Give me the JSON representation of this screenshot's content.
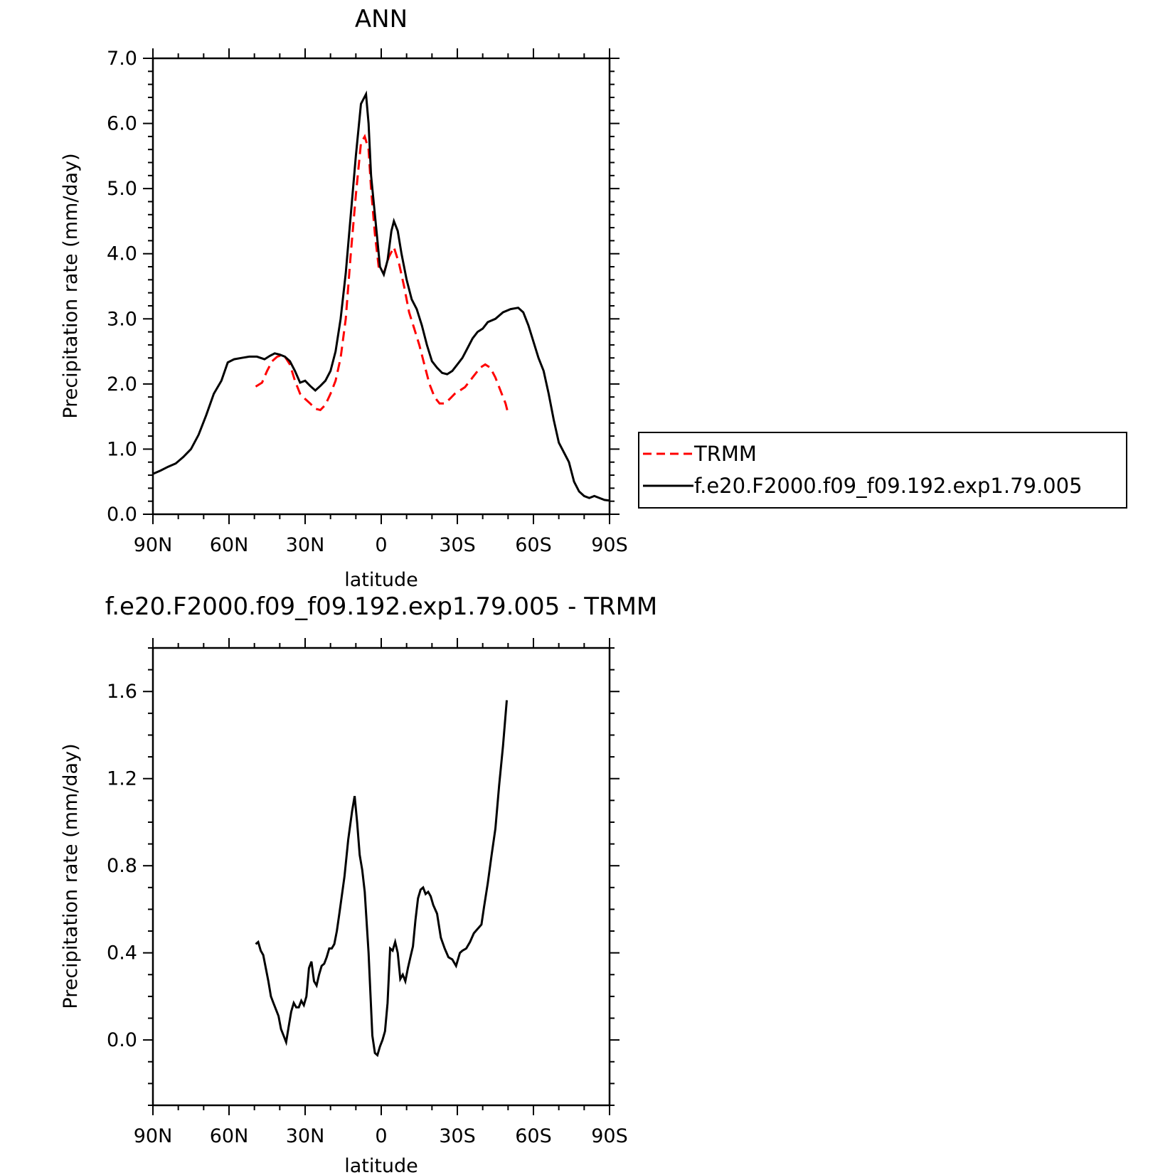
{
  "chart_data": [
    {
      "type": "line",
      "title": "ANN",
      "xlabel": "latitude",
      "ylabel": "Precipitation rate (mm/day)",
      "x_tick_values": [
        90,
        60,
        30,
        0,
        -30,
        -60,
        -90
      ],
      "x_tick_labels": [
        "90N",
        "60N",
        "30N",
        "0",
        "30S",
        "60S",
        "90S"
      ],
      "y_tick_values": [
        0,
        1,
        2,
        3,
        4,
        5,
        6,
        7
      ],
      "y_tick_labels": [
        "0.0",
        "1.0",
        "2.0",
        "3.0",
        "4.0",
        "5.0",
        "6.0",
        "7.0"
      ],
      "xlim": [
        90,
        -90
      ],
      "ylim": [
        0,
        7
      ],
      "legend_position": "right",
      "series": [
        {
          "name": "TRMM",
          "color": "#ff0000",
          "dash": "dashed",
          "points": [
            [
              49.5,
              1.96
            ],
            [
              47,
              2.02
            ],
            [
              45,
              2.2
            ],
            [
              43,
              2.35
            ],
            [
              41,
              2.42
            ],
            [
              38.5,
              2.45
            ],
            [
              36,
              2.3
            ],
            [
              34,
              2.05
            ],
            [
              32,
              1.85
            ],
            [
              30,
              1.77
            ],
            [
              28,
              1.7
            ],
            [
              26,
              1.62
            ],
            [
              24,
              1.6
            ],
            [
              22,
              1.68
            ],
            [
              20,
              1.85
            ],
            [
              18,
              2.05
            ],
            [
              16,
              2.4
            ],
            [
              14,
              3.0
            ],
            [
              12,
              4.0
            ],
            [
              10,
              4.9
            ],
            [
              8,
              5.7
            ],
            [
              6.5,
              5.8
            ],
            [
              5,
              5.6
            ],
            [
              4,
              5.0
            ],
            [
              2.5,
              4.3
            ],
            [
              1,
              3.8
            ],
            [
              -1,
              3.7
            ],
            [
              -3,
              3.95
            ],
            [
              -5,
              4.1
            ],
            [
              -7,
              3.85
            ],
            [
              -9,
              3.5
            ],
            [
              -11,
              3.1
            ],
            [
              -13,
              2.85
            ],
            [
              -15,
              2.6
            ],
            [
              -17,
              2.3
            ],
            [
              -19,
              2.0
            ],
            [
              -21,
              1.8
            ],
            [
              -23,
              1.7
            ],
            [
              -25,
              1.7
            ],
            [
              -27,
              1.77
            ],
            [
              -29,
              1.85
            ],
            [
              -31,
              1.9
            ],
            [
              -33,
              1.95
            ],
            [
              -36,
              2.1
            ],
            [
              -39,
              2.25
            ],
            [
              -41,
              2.3
            ],
            [
              -43,
              2.25
            ],
            [
              -45,
              2.1
            ],
            [
              -47,
              1.9
            ],
            [
              -49,
              1.7
            ],
            [
              -50,
              1.55
            ]
          ]
        },
        {
          "name": "f.e20.F2000.f09_f09.192.exp1.79.005",
          "color": "#000000",
          "dash": "solid",
          "points": [
            [
              90,
              0.62
            ],
            [
              87,
              0.67
            ],
            [
              84,
              0.73
            ],
            [
              81,
              0.78
            ],
            [
              78,
              0.88
            ],
            [
              75,
              1.0
            ],
            [
              72,
              1.22
            ],
            [
              69,
              1.52
            ],
            [
              66,
              1.85
            ],
            [
              63,
              2.05
            ],
            [
              60.5,
              2.33
            ],
            [
              58,
              2.38
            ],
            [
              55,
              2.4
            ],
            [
              52,
              2.42
            ],
            [
              49,
              2.42
            ],
            [
              46,
              2.38
            ],
            [
              44,
              2.43
            ],
            [
              42,
              2.47
            ],
            [
              40,
              2.45
            ],
            [
              38,
              2.42
            ],
            [
              36,
              2.35
            ],
            [
              34,
              2.2
            ],
            [
              32,
              2.02
            ],
            [
              30,
              2.05
            ],
            [
              28,
              1.97
            ],
            [
              26,
              1.9
            ],
            [
              24,
              1.97
            ],
            [
              22,
              2.05
            ],
            [
              20,
              2.2
            ],
            [
              18,
              2.5
            ],
            [
              16,
              3.0
            ],
            [
              14,
              3.7
            ],
            [
              12,
              4.6
            ],
            [
              10,
              5.5
            ],
            [
              8,
              6.3
            ],
            [
              6,
              6.45
            ],
            [
              5,
              6.0
            ],
            [
              4,
              5.2
            ],
            [
              2,
              4.4
            ],
            [
              0.5,
              3.8
            ],
            [
              -1,
              3.68
            ],
            [
              -2.5,
              3.9
            ],
            [
              -4,
              4.35
            ],
            [
              -5,
              4.5
            ],
            [
              -6.5,
              4.35
            ],
            [
              -8,
              4.0
            ],
            [
              -10,
              3.6
            ],
            [
              -12,
              3.3
            ],
            [
              -14,
              3.15
            ],
            [
              -16,
              2.9
            ],
            [
              -18,
              2.6
            ],
            [
              -20,
              2.35
            ],
            [
              -22,
              2.25
            ],
            [
              -24,
              2.17
            ],
            [
              -26,
              2.15
            ],
            [
              -28,
              2.2
            ],
            [
              -30,
              2.3
            ],
            [
              -32,
              2.4
            ],
            [
              -34,
              2.55
            ],
            [
              -36,
              2.7
            ],
            [
              -38,
              2.8
            ],
            [
              -40,
              2.85
            ],
            [
              -42,
              2.95
            ],
            [
              -45,
              3.0
            ],
            [
              -48,
              3.1
            ],
            [
              -51,
              3.15
            ],
            [
              -54,
              3.17
            ],
            [
              -56,
              3.1
            ],
            [
              -58,
              2.9
            ],
            [
              -60,
              2.65
            ],
            [
              -62,
              2.4
            ],
            [
              -64,
              2.2
            ],
            [
              -66,
              1.85
            ],
            [
              -68,
              1.45
            ],
            [
              -70,
              1.1
            ],
            [
              -72,
              0.95
            ],
            [
              -74,
              0.8
            ],
            [
              -76,
              0.5
            ],
            [
              -78,
              0.35
            ],
            [
              -80,
              0.28
            ],
            [
              -82,
              0.25
            ],
            [
              -84,
              0.28
            ],
            [
              -86,
              0.25
            ],
            [
              -88,
              0.22
            ],
            [
              -90,
              0.21
            ]
          ]
        }
      ]
    },
    {
      "type": "line",
      "title": "f.e20.F2000.f09_f09.192.exp1.79.005 - TRMM",
      "xlabel": "latitude",
      "ylabel": "Precipitation rate (mm/day)",
      "x_tick_values": [
        90,
        60,
        30,
        0,
        -30,
        -60,
        -90
      ],
      "x_tick_labels": [
        "90N",
        "60N",
        "30N",
        "0",
        "30S",
        "60S",
        "90S"
      ],
      "y_tick_values": [
        0,
        0.4,
        0.8,
        1.2,
        1.6
      ],
      "y_tick_labels": [
        "0.0",
        "0.4",
        "0.8",
        "1.2",
        "1.6"
      ],
      "xlim": [
        90,
        -90
      ],
      "ylim": [
        -0.3,
        1.8
      ],
      "series": [
        {
          "color": "#000000",
          "dash": "solid",
          "points": [
            [
              49.5,
              0.44
            ],
            [
              48.5,
              0.45
            ],
            [
              47.5,
              0.41
            ],
            [
              46.5,
              0.39
            ],
            [
              45.5,
              0.33
            ],
            [
              44.5,
              0.27
            ],
            [
              43.5,
              0.2
            ],
            [
              42.5,
              0.17
            ],
            [
              41.5,
              0.14
            ],
            [
              40.5,
              0.11
            ],
            [
              39.5,
              0.05
            ],
            [
              38.5,
              0.02
            ],
            [
              37.5,
              -0.01
            ],
            [
              36.5,
              0.06
            ],
            [
              35.5,
              0.13
            ],
            [
              34.5,
              0.17
            ],
            [
              33.5,
              0.15
            ],
            [
              32.5,
              0.15
            ],
            [
              31.5,
              0.18
            ],
            [
              30.5,
              0.16
            ],
            [
              29.5,
              0.2
            ],
            [
              28.5,
              0.33
            ],
            [
              27.5,
              0.36
            ],
            [
              26.5,
              0.27
            ],
            [
              25.5,
              0.25
            ],
            [
              24.5,
              0.3
            ],
            [
              23.5,
              0.34
            ],
            [
              22.5,
              0.35
            ],
            [
              21.5,
              0.38
            ],
            [
              20.5,
              0.42
            ],
            [
              19.5,
              0.42
            ],
            [
              18.5,
              0.44
            ],
            [
              17.5,
              0.5
            ],
            [
              16.5,
              0.58
            ],
            [
              14.5,
              0.75
            ],
            [
              13,
              0.92
            ],
            [
              11.5,
              1.05
            ],
            [
              10.5,
              1.12
            ],
            [
              9.5,
              1.0
            ],
            [
              8.5,
              0.85
            ],
            [
              7.5,
              0.78
            ],
            [
              6.5,
              0.68
            ],
            [
              5,
              0.4
            ],
            [
              3.5,
              0.02
            ],
            [
              2.5,
              -0.06
            ],
            [
              1.5,
              -0.07
            ],
            [
              0.5,
              -0.03
            ],
            [
              -0.5,
              0.0
            ],
            [
              -1.5,
              0.04
            ],
            [
              -2.5,
              0.17
            ],
            [
              -3.5,
              0.42
            ],
            [
              -4.5,
              0.41
            ],
            [
              -5.5,
              0.45
            ],
            [
              -6.5,
              0.4
            ],
            [
              -7.5,
              0.28
            ],
            [
              -8.5,
              0.3
            ],
            [
              -9.5,
              0.27
            ],
            [
              -10.5,
              0.33
            ],
            [
              -11.5,
              0.38
            ],
            [
              -12.5,
              0.43
            ],
            [
              -13.5,
              0.55
            ],
            [
              -14.5,
              0.65
            ],
            [
              -15.5,
              0.69
            ],
            [
              -16.5,
              0.7
            ],
            [
              -17.5,
              0.67
            ],
            [
              -18.5,
              0.68
            ],
            [
              -19.5,
              0.66
            ],
            [
              -20.5,
              0.62
            ],
            [
              -22,
              0.58
            ],
            [
              -23.5,
              0.47
            ],
            [
              -25,
              0.42
            ],
            [
              -26.5,
              0.38
            ],
            [
              -28,
              0.37
            ],
            [
              -29.5,
              0.34
            ],
            [
              -31,
              0.4
            ],
            [
              -32,
              0.41
            ],
            [
              -33.5,
              0.42
            ],
            [
              -35,
              0.45
            ],
            [
              -36.5,
              0.49
            ],
            [
              -38,
              0.51
            ],
            [
              -39.5,
              0.53
            ],
            [
              -40.5,
              0.61
            ],
            [
              -42,
              0.72
            ],
            [
              -43.5,
              0.85
            ],
            [
              -45,
              0.97
            ],
            [
              -46.5,
              1.17
            ],
            [
              -48,
              1.35
            ],
            [
              -49.5,
              1.56
            ]
          ]
        }
      ]
    }
  ]
}
